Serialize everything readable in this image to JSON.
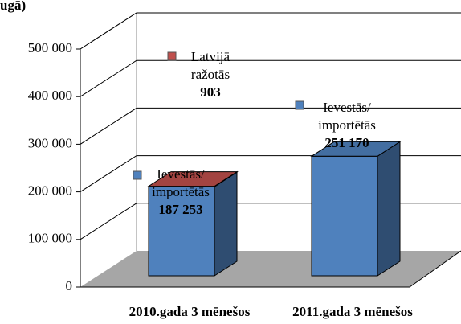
{
  "chart_data": {
    "type": "bar3d_stacked",
    "title": "ugā)",
    "categories": [
      "2010.gada 3 mēnešos",
      "2011.gada 3 mēnešos"
    ],
    "series": [
      {
        "name": "Ievestās/ importētās",
        "color": "#4f81bd",
        "values": [
          187253,
          251170
        ],
        "value_labels": [
          "187 253",
          "251 170"
        ]
      },
      {
        "name": "Latvijā ražotās",
        "color": "#c0504d",
        "values": [
          903,
          null
        ],
        "value_labels": [
          "903",
          null
        ]
      }
    ],
    "ylim": [
      0,
      500000
    ],
    "yticks": [
      {
        "value": 0,
        "label": "0"
      },
      {
        "value": 100000,
        "label": "100 000"
      },
      {
        "value": 200000,
        "label": "200 000"
      },
      {
        "value": 300000,
        "label": "300 000"
      },
      {
        "value": 400000,
        "label": "400 000"
      },
      {
        "value": 500000,
        "label": "500 000"
      }
    ],
    "grid": true
  }
}
